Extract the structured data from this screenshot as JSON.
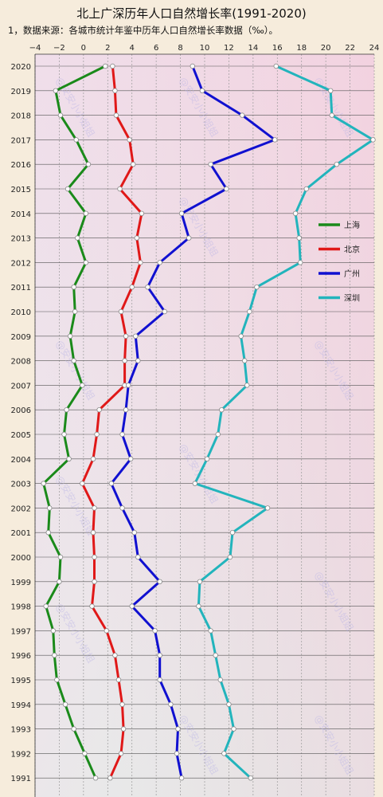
{
  "chart_data": {
    "type": "line",
    "title": "北上广深历年人口自然增长率(1991-2020)",
    "subtitle": "1，数据来源：各城市统计年鉴中历年人口自然增长率数据（‰）。",
    "x_ticks": [
      -4,
      -2,
      0,
      2,
      4,
      6,
      8,
      10,
      12,
      14,
      16,
      18,
      20,
      22,
      24
    ],
    "xlim": [
      -4,
      24
    ],
    "categories": [
      "2020",
      "2019",
      "2018",
      "2017",
      "2016",
      "2015",
      "2014",
      "2013",
      "2012",
      "2011",
      "2010",
      "2009",
      "2008",
      "2007",
      "2006",
      "2005",
      "2004",
      "2003",
      "2002",
      "2001",
      "2000",
      "1999",
      "1998",
      "1997",
      "1996",
      "1995",
      "1994",
      "1993",
      "1992",
      "1991"
    ],
    "series": [
      {
        "name": "上海",
        "color": "#1a8a1a",
        "values": [
          1.8,
          -2.3,
          -1.9,
          -0.6,
          0.4,
          -1.3,
          0.2,
          -0.5,
          0.2,
          -0.8,
          -0.7,
          -1.1,
          -0.8,
          -0.1,
          -1.4,
          -1.6,
          -1.2,
          -3.3,
          -2.8,
          -2.9,
          -1.9,
          -2.0,
          -3.1,
          -2.5,
          -2.4,
          -2.2,
          -1.5,
          -0.8,
          0.1,
          1.0
        ]
      },
      {
        "name": "北京",
        "color": "#e01818",
        "values": [
          2.4,
          2.6,
          2.7,
          3.8,
          4.1,
          3.0,
          4.8,
          4.4,
          4.7,
          4.0,
          3.1,
          3.5,
          3.4,
          3.4,
          1.3,
          1.1,
          0.8,
          -0.1,
          0.9,
          0.8,
          0.9,
          0.9,
          0.7,
          1.9,
          2.6,
          2.9,
          3.2,
          3.3,
          3.1,
          2.2
        ]
      },
      {
        "name": "广州",
        "color": "#1010d0",
        "values": [
          9.0,
          9.8,
          13.1,
          15.8,
          10.5,
          11.8,
          8.1,
          8.7,
          6.3,
          5.3,
          6.7,
          4.3,
          4.5,
          3.7,
          3.5,
          3.2,
          3.9,
          2.3,
          3.2,
          4.2,
          4.5,
          6.3,
          4.0,
          5.9,
          6.3,
          6.3,
          7.2,
          7.8,
          7.7,
          8.1
        ]
      },
      {
        "name": "深圳",
        "color": "#22b4bc",
        "values": [
          15.9,
          20.4,
          20.5,
          23.9,
          20.9,
          18.4,
          17.5,
          17.8,
          17.9,
          14.3,
          13.7,
          13.0,
          13.3,
          13.5,
          11.4,
          11.1,
          10.2,
          9.2,
          15.2,
          12.3,
          12.1,
          9.6,
          9.5,
          10.5,
          10.9,
          11.3,
          12.0,
          12.4,
          11.6,
          13.8
        ]
      }
    ],
    "grid": true,
    "legend_position": "right"
  },
  "watermark": "@安安小小姐姐"
}
